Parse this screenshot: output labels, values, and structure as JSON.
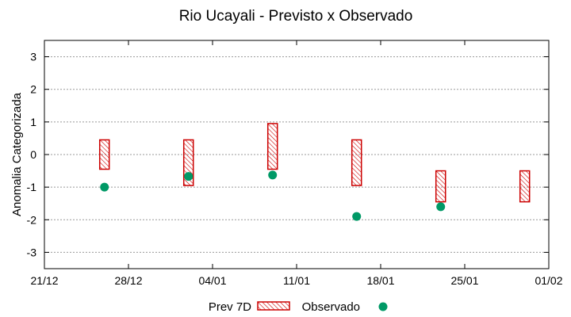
{
  "chart_data": {
    "type": "scatter",
    "title": "Rio Ucayali - Previsto x Observado",
    "xlabel": "",
    "ylabel": "Anomalia Categorizada",
    "x_ticks": [
      "21/12",
      "28/12",
      "04/01",
      "11/01",
      "18/01",
      "25/01",
      "01/02"
    ],
    "xlim": [
      "21/12",
      "01/02"
    ],
    "ylim": [
      -3.5,
      3.5
    ],
    "y_ticks": [
      -3,
      -2,
      -1,
      0,
      1,
      2,
      3
    ],
    "grid": true,
    "legend_position": "bottom",
    "series": [
      {
        "name": "Prev 7D",
        "style": "hatched-box",
        "color": "#cc0000",
        "points": [
          {
            "x": "26/12",
            "low": -0.45,
            "high": 0.45
          },
          {
            "x": "02/01",
            "low": -0.95,
            "high": 0.45
          },
          {
            "x": "09/01",
            "low": -0.45,
            "high": 0.95
          },
          {
            "x": "16/01",
            "low": -0.95,
            "high": 0.45
          },
          {
            "x": "23/01",
            "low": -1.45,
            "high": -0.5
          },
          {
            "x": "30/01",
            "low": -1.45,
            "high": -0.5
          }
        ]
      },
      {
        "name": "Observado",
        "style": "marker",
        "color": "#009966",
        "points": [
          {
            "x": "26/12",
            "y": -1.0
          },
          {
            "x": "02/01",
            "y": -0.67
          },
          {
            "x": "09/01",
            "y": -0.63
          },
          {
            "x": "16/01",
            "y": -1.9
          },
          {
            "x": "23/01",
            "y": -1.6
          }
        ]
      }
    ]
  }
}
